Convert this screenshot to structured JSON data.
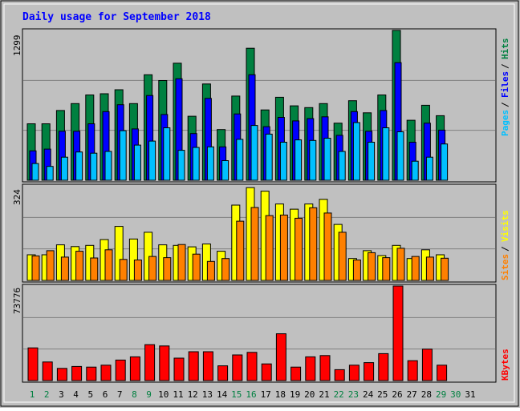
{
  "title": "Daily usage for September 2018",
  "colors": {
    "background": "#c0c0c0",
    "panel": "#c0c0c0",
    "title": "#0000ff",
    "hits": "#008040",
    "files": "#0000ff",
    "pages": "#00c0ff",
    "visits": "#ffff00",
    "sites": "#ff8000",
    "kbytes": "#ff0000",
    "weekend_day": "#008040",
    "weekday": "#000000",
    "gridline": "#808080"
  },
  "chart_data": [
    {
      "type": "bar",
      "panel": "hits-files-pages",
      "ymax_label": "1299",
      "ylim": [
        0,
        1299
      ],
      "grid": true,
      "legend": [
        "Pages",
        "/",
        "Files",
        "/",
        "Hits"
      ],
      "categories": [
        "1",
        "2",
        "3",
        "4",
        "5",
        "6",
        "7",
        "8",
        "9",
        "10",
        "11",
        "12",
        "13",
        "14",
        "15",
        "16",
        "17",
        "18",
        "19",
        "20",
        "21",
        "22",
        "23",
        "24",
        "25",
        "26",
        "27",
        "28",
        "29",
        "30",
        "31"
      ],
      "series": [
        {
          "name": "Hits",
          "values": [
            490,
            490,
            605,
            665,
            740,
            750,
            785,
            665,
            915,
            865,
            1015,
            555,
            835,
            440,
            730,
            1145,
            610,
            720,
            645,
            630,
            665,
            495,
            690,
            585,
            740,
            1300,
            520,
            650,
            560,
            0,
            0
          ]
        },
        {
          "name": "Files",
          "values": [
            255,
            270,
            425,
            425,
            490,
            595,
            655,
            445,
            735,
            570,
            880,
            405,
            710,
            290,
            575,
            915,
            465,
            545,
            515,
            535,
            550,
            390,
            595,
            425,
            605,
            1020,
            330,
            495,
            435,
            0,
            0
          ]
        },
        {
          "name": "Pages",
          "values": [
            145,
            120,
            200,
            245,
            235,
            250,
            430,
            305,
            340,
            455,
            260,
            285,
            290,
            170,
            355,
            475,
            400,
            330,
            350,
            345,
            365,
            250,
            500,
            330,
            455,
            420,
            165,
            200,
            315,
            0,
            0
          ]
        }
      ]
    },
    {
      "type": "bar",
      "panel": "visits-sites",
      "ymax_label": "324",
      "ylim": [
        0,
        324
      ],
      "grid": true,
      "legend": [
        "Sites",
        "/",
        "Visits"
      ],
      "categories": [
        "1",
        "2",
        "3",
        "4",
        "5",
        "6",
        "7",
        "8",
        "9",
        "10",
        "11",
        "12",
        "13",
        "14",
        "15",
        "16",
        "17",
        "18",
        "19",
        "20",
        "21",
        "22",
        "23",
        "24",
        "25",
        "26",
        "27",
        "28",
        "29",
        "30",
        "31"
      ],
      "series": [
        {
          "name": "Visits",
          "values": [
            88,
            88,
            122,
            116,
            120,
            140,
            185,
            142,
            165,
            122,
            120,
            115,
            125,
            100,
            258,
            318,
            306,
            262,
            244,
            262,
            278,
            192,
            75,
            102,
            85,
            120,
            75,
            105,
            88,
            0,
            0
          ]
        },
        {
          "name": "Sites",
          "values": [
            84,
            102,
            80,
            100,
            77,
            105,
            72,
            70,
            82,
            78,
            123,
            90,
            65,
            75,
            203,
            250,
            222,
            224,
            213,
            249,
            231,
            165,
            70,
            95,
            78,
            110,
            82,
            80,
            76,
            0,
            0
          ]
        }
      ]
    },
    {
      "type": "bar",
      "panel": "kbytes",
      "ymax_label": "73776",
      "ylim": [
        0,
        73776
      ],
      "grid": true,
      "legend": [
        "KBytes"
      ],
      "categories": [
        "1",
        "2",
        "3",
        "4",
        "5",
        "6",
        "7",
        "8",
        "9",
        "10",
        "11",
        "12",
        "13",
        "14",
        "15",
        "16",
        "17",
        "18",
        "19",
        "20",
        "21",
        "22",
        "23",
        "24",
        "25",
        "26",
        "27",
        "28",
        "29",
        "30",
        "31"
      ],
      "series": [
        {
          "name": "KBytes",
          "values": [
            25500,
            14500,
            9500,
            11000,
            10500,
            12000,
            16000,
            18500,
            28000,
            27000,
            17500,
            22500,
            22500,
            11500,
            20000,
            22000,
            13000,
            36500,
            10500,
            18500,
            19500,
            8500,
            12000,
            14000,
            21000,
            73776,
            15500,
            24500,
            12000,
            0,
            0
          ]
        }
      ]
    }
  ],
  "weekend_days": [
    "1",
    "2",
    "8",
    "9",
    "15",
    "16",
    "22",
    "23",
    "29",
    "30"
  ]
}
